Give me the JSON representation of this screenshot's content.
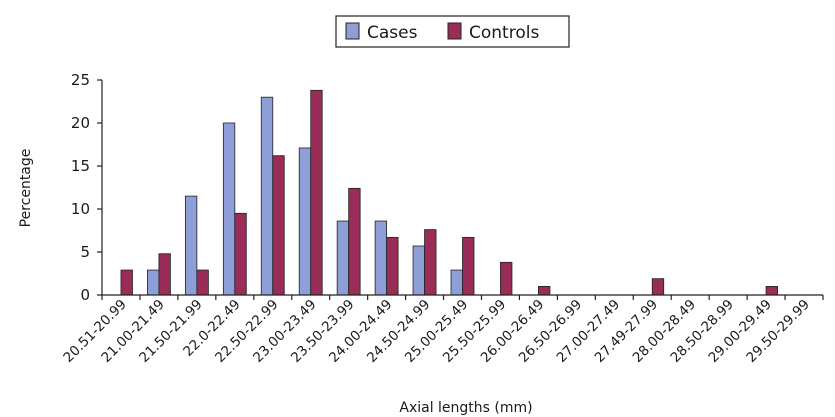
{
  "chart_data": {
    "type": "bar",
    "xlabel": "Axial lengths (mm)",
    "ylabel": "Percentage",
    "ylim": [
      0,
      25
    ],
    "yticks": [
      0,
      5,
      10,
      15,
      20,
      25
    ],
    "grid": false,
    "legend_position": "top-center",
    "categories": [
      "20.51-20.99",
      "21.00-21.49",
      "21.50-21.99",
      "22.0-22.49",
      "22.50-22.99",
      "23.00-23.49",
      "23.50-23.99",
      "24.00-24.49",
      "24.50-24.99",
      "25.00-25.49",
      "25.50-25.99",
      "26.00-26.49",
      "26.50-26.99",
      "27.00-27.49",
      "27.49-27.99",
      "28.00-28.49",
      "28.50-28.99",
      "29.00-29.49",
      "29.50-29.99"
    ],
    "series": [
      {
        "name": "Cases",
        "color": "#8e9ed6",
        "values": [
          0,
          2.9,
          11.5,
          20,
          23,
          17.1,
          8.6,
          8.6,
          5.7,
          2.9,
          0,
          0,
          0,
          0,
          0,
          0,
          0,
          0,
          0
        ]
      },
      {
        "name": "Controls",
        "color": "#9a2d58",
        "values": [
          2.9,
          4.8,
          2.9,
          9.5,
          16.2,
          23.8,
          12.4,
          6.7,
          7.6,
          6.7,
          3.8,
          1.0,
          0,
          0,
          1.9,
          0,
          0,
          1.0,
          0
        ]
      }
    ]
  }
}
